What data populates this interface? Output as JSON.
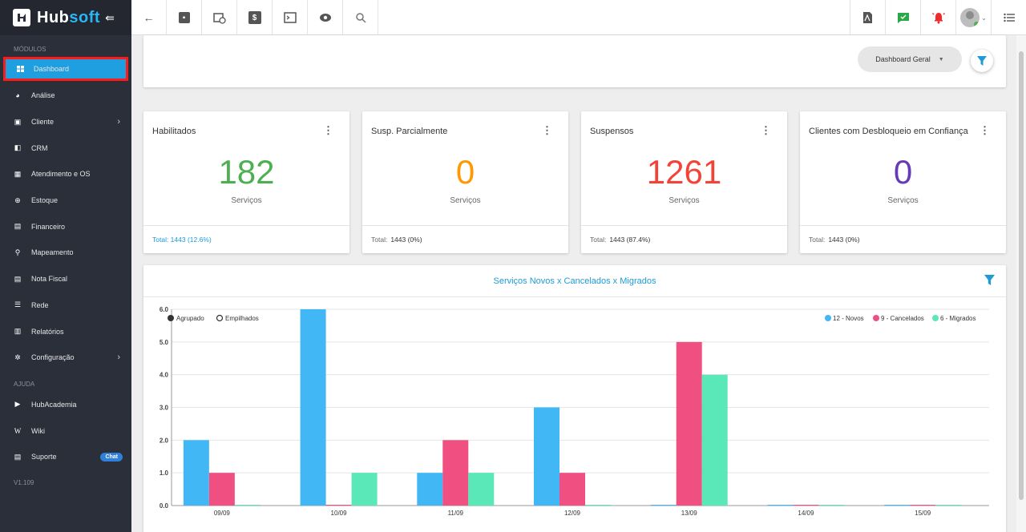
{
  "brand": {
    "name_a": "Hub",
    "name_b": "soft"
  },
  "sidebar": {
    "section_modules": "MÓDULOS",
    "items": [
      {
        "label": "Dashboard",
        "icon": "grid-icon"
      },
      {
        "label": "Análise",
        "icon": "pie-icon"
      },
      {
        "label": "Cliente",
        "icon": "contact-icon"
      },
      {
        "label": "CRM",
        "icon": "crm-icon"
      },
      {
        "label": "Atendimento e OS",
        "icon": "calendar-icon"
      },
      {
        "label": "Estoque",
        "icon": "globe-icon"
      },
      {
        "label": "Financeiro",
        "icon": "money-icon"
      },
      {
        "label": "Mapeamento",
        "icon": "map-pin-icon"
      },
      {
        "label": "Nota Fiscal",
        "icon": "invoice-icon"
      },
      {
        "label": "Rede",
        "icon": "network-icon"
      },
      {
        "label": "Relatórios",
        "icon": "report-icon"
      },
      {
        "label": "Configuração",
        "icon": "gear-icon"
      }
    ],
    "section_help": "AJUDA",
    "help_items": [
      {
        "label": "HubAcademia",
        "icon": "play-icon"
      },
      {
        "label": "Wiki",
        "icon": "wiki-icon"
      },
      {
        "label": "Suporte",
        "icon": "chat-icon",
        "badge": "Chat"
      }
    ],
    "version": "V1.109"
  },
  "filter": {
    "dashboard_select": "Dashboard Geral"
  },
  "stats": [
    {
      "title": "Habilitados",
      "value": "182",
      "unit": "Serviços",
      "total_label": "Total: 1443 (12.6%)",
      "total_value": "",
      "color": "#4caf50"
    },
    {
      "title": "Susp. Parcialmente",
      "value": "0",
      "unit": "Serviços",
      "total_label": "Total:",
      "total_value": "1443 (0%)",
      "color": "#ff9800"
    },
    {
      "title": "Suspensos",
      "value": "1261",
      "unit": "Serviços",
      "total_label": "Total:",
      "total_value": "1443 (87.4%)",
      "color": "#f44336"
    },
    {
      "title": "Clientes com Desbloqueio em Confiança",
      "value": "0",
      "unit": "Serviços",
      "total_label": "Total:",
      "total_value": "1443 (0%)",
      "color": "#673ab7"
    }
  ],
  "chart": {
    "title": "Serviços Novos x Cancelados x Migrados",
    "mode_grouped": "Agrupado",
    "mode_stacked": "Empilhados"
  },
  "chart_data": {
    "type": "bar",
    "categories": [
      "09/09",
      "10/09",
      "11/09",
      "12/09",
      "13/09",
      "14/09",
      "15/09"
    ],
    "series": [
      {
        "name": "12 - Novos",
        "values": [
          2,
          6,
          1,
          3,
          0,
          0,
          0
        ],
        "color": "#41b8f5"
      },
      {
        "name": "9 - Cancelados",
        "values": [
          1,
          0,
          2,
          1,
          5,
          0,
          0
        ],
        "color": "#ef5081"
      },
      {
        "name": "6 - Migrados",
        "values": [
          0,
          1,
          1,
          0,
          4,
          0,
          0
        ],
        "color": "#5ae8b8"
      }
    ],
    "yticks": [
      "0.0",
      "1.0",
      "2.0",
      "3.0",
      "4.0",
      "5.0",
      "6.0"
    ],
    "ylim": [
      0,
      6
    ],
    "grid": true,
    "legend_position": "top-right"
  }
}
